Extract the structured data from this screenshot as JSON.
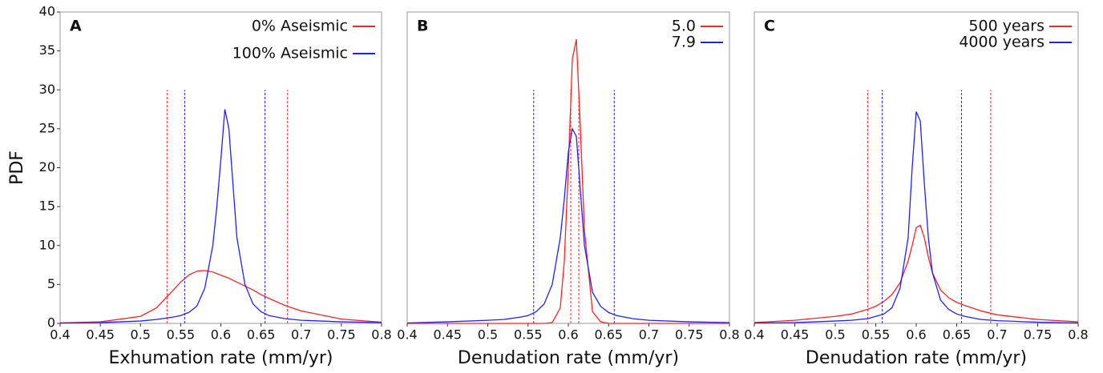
{
  "chart_data": [
    {
      "type": "line",
      "label": "A",
      "xlabel": "Exhumation rate (mm/yr)",
      "ylabel": "PDF",
      "legend": "upper right",
      "xlim": [
        0.4,
        0.8
      ],
      "xticks": [
        0.4,
        0.45,
        0.5,
        0.55,
        0.6,
        0.65,
        0.7,
        0.75,
        0.8
      ],
      "ylim": [
        0,
        40
      ],
      "yticks": [
        0,
        5,
        10,
        15,
        20,
        25,
        30,
        35,
        40
      ],
      "x": [
        0.4,
        0.45,
        0.5,
        0.52,
        0.54,
        0.55,
        0.56,
        0.57,
        0.58,
        0.59,
        0.595,
        0.6,
        0.605,
        0.61,
        0.615,
        0.62,
        0.63,
        0.64,
        0.65,
        0.66,
        0.68,
        0.7,
        0.75,
        0.8
      ],
      "series": [
        {
          "name": "0% Aseismic",
          "color": "#ff2020",
          "interval": [
            0.533,
            0.683
          ],
          "values": [
            0.05,
            0.2,
            0.9,
            2.0,
            4.2,
            5.3,
            6.2,
            6.7,
            6.8,
            6.6,
            6.4,
            6.2,
            6.0,
            5.8,
            5.55,
            5.3,
            4.8,
            4.3,
            3.7,
            3.2,
            2.3,
            1.6,
            0.55,
            0.15
          ]
        },
        {
          "name": "100% Aseismic",
          "color": "#2020ff",
          "interval": [
            0.555,
            0.655
          ],
          "values": [
            0.05,
            0.1,
            0.3,
            0.5,
            0.8,
            1.0,
            1.4,
            2.2,
            4.5,
            10,
            15,
            21,
            27.5,
            25,
            18,
            11,
            5,
            2.5,
            1.5,
            1.0,
            0.6,
            0.4,
            0.2,
            0.1
          ]
        }
      ]
    },
    {
      "type": "line",
      "label": "B",
      "xlabel": "Denudation rate (mm/yr)",
      "legend": "upper right",
      "xlim": [
        0.4,
        0.8
      ],
      "xticks": [
        0.4,
        0.45,
        0.5,
        0.55,
        0.6,
        0.65,
        0.7,
        0.75,
        0.8
      ],
      "ylim": [
        0,
        40
      ],
      "x": [
        0.4,
        0.45,
        0.5,
        0.52,
        0.54,
        0.55,
        0.56,
        0.57,
        0.58,
        0.59,
        0.595,
        0.6,
        0.605,
        0.61,
        0.615,
        0.62,
        0.63,
        0.64,
        0.65,
        0.66,
        0.68,
        0.7,
        0.75,
        0.8
      ],
      "series": [
        {
          "name": "5.0",
          "color": "#ff2020",
          "interval": [
            0.603,
            0.613
          ],
          "values": [
            0,
            0,
            0,
            0,
            0,
            0,
            0,
            0,
            0.1,
            2,
            8,
            20,
            34,
            36.5,
            25,
            12,
            1.5,
            0.2,
            0,
            0,
            0,
            0,
            0,
            0
          ]
        },
        {
          "name": "7.9",
          "color": "#2020ff",
          "interval": [
            0.557,
            0.657
          ],
          "values": [
            0.05,
            0.2,
            0.4,
            0.5,
            0.8,
            1.0,
            1.5,
            2.5,
            5,
            11,
            16,
            22,
            25,
            24,
            17,
            10,
            4,
            2.2,
            1.4,
            1.0,
            0.6,
            0.4,
            0.2,
            0.1
          ]
        }
      ]
    },
    {
      "type": "line",
      "label": "C",
      "xlabel": "Denudation rate (mm/yr)",
      "legend": "upper right",
      "xlim": [
        0.4,
        0.8
      ],
      "xticks": [
        0.4,
        0.45,
        0.5,
        0.55,
        0.6,
        0.65,
        0.7,
        0.75,
        0.8
      ],
      "ylim": [
        0,
        40
      ],
      "x": [
        0.4,
        0.45,
        0.5,
        0.52,
        0.54,
        0.55,
        0.56,
        0.57,
        0.58,
        0.59,
        0.595,
        0.6,
        0.605,
        0.61,
        0.615,
        0.62,
        0.63,
        0.64,
        0.65,
        0.66,
        0.68,
        0.7,
        0.75,
        0.8
      ],
      "series": [
        {
          "name": "500 years",
          "color": "#ff2020",
          "interval": [
            0.54,
            0.692
          ],
          "values": [
            0.1,
            0.4,
            0.9,
            1.2,
            1.8,
            2.2,
            2.8,
            3.7,
            5.2,
            8,
            10,
            12.3,
            12.6,
            11,
            8.5,
            6.5,
            4.3,
            3.3,
            2.7,
            2.3,
            1.6,
            1.1,
            0.5,
            0.2
          ]
        },
        {
          "name": "4000 years",
          "color": "#2020ff",
          "interval": [
            0.558,
            0.656
          ],
          "values": [
            0.05,
            0.1,
            0.3,
            0.4,
            0.6,
            0.9,
            1.2,
            2,
            4.5,
            11,
            20,
            27.2,
            26,
            18,
            11,
            6.5,
            3,
            1.8,
            1.2,
            0.9,
            0.5,
            0.35,
            0.15,
            0.05
          ]
        }
      ]
    }
  ]
}
